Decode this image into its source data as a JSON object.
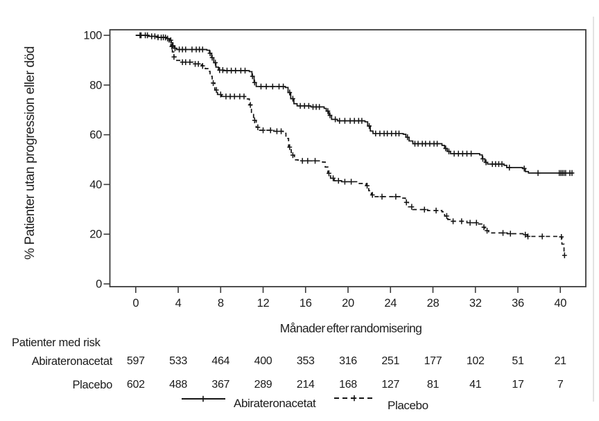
{
  "chart_data": {
    "type": "line",
    "subtype": "kaplan-meier-step",
    "title": "",
    "xlabel": "Månader efter randomisering",
    "ylabel": "% Patienter utan progression eller död",
    "xticks": [
      0,
      4,
      8,
      12,
      16,
      20,
      24,
      28,
      32,
      36,
      40
    ],
    "yticks": [
      0,
      20,
      40,
      60,
      80,
      100
    ],
    "xlim": [
      -2.4,
      42.6
    ],
    "ylim": [
      -1.2,
      102.2
    ],
    "grid": false,
    "legend_position": "bottom",
    "axis_color": "#3b3b3b",
    "curve_color": "#141414",
    "series": [
      {
        "name": "Abirateronacetat",
        "style": "solid",
        "steps": [
          [
            0,
            100
          ],
          [
            1.2,
            99.6
          ],
          [
            2.0,
            99.2
          ],
          [
            2.9,
            98.7
          ],
          [
            3.2,
            98.0
          ],
          [
            3.35,
            97.0
          ],
          [
            3.5,
            95.8
          ],
          [
            3.65,
            94.8
          ],
          [
            3.85,
            94.3
          ],
          [
            6.7,
            94.0
          ],
          [
            6.95,
            92.8
          ],
          [
            7.15,
            91.0
          ],
          [
            7.35,
            89.0
          ],
          [
            7.55,
            87.2
          ],
          [
            7.8,
            86.0
          ],
          [
            8.3,
            85.8
          ],
          [
            10.7,
            85.4
          ],
          [
            10.95,
            83.5
          ],
          [
            11.15,
            81.0
          ],
          [
            11.35,
            79.4
          ],
          [
            14.1,
            79.0
          ],
          [
            14.35,
            77.0
          ],
          [
            14.6,
            74.5
          ],
          [
            14.9,
            72.5
          ],
          [
            15.2,
            71.6
          ],
          [
            16.5,
            71.2
          ],
          [
            17.75,
            70.6
          ],
          [
            17.95,
            69.5
          ],
          [
            18.2,
            67.8
          ],
          [
            18.45,
            66.2
          ],
          [
            19.0,
            65.6
          ],
          [
            21.6,
            65.2
          ],
          [
            21.85,
            63.5
          ],
          [
            22.1,
            61.5
          ],
          [
            22.35,
            60.5
          ],
          [
            25.2,
            60.2
          ],
          [
            25.45,
            59.0
          ],
          [
            25.75,
            57.5
          ],
          [
            26.1,
            56.4
          ],
          [
            28.85,
            55.7
          ],
          [
            29.1,
            54.5
          ],
          [
            29.35,
            53.3
          ],
          [
            29.65,
            52.4
          ],
          [
            32.4,
            51.9
          ],
          [
            32.65,
            50.3
          ],
          [
            32.9,
            48.9
          ],
          [
            33.15,
            48.2
          ],
          [
            34.7,
            47.7
          ],
          [
            34.95,
            46.8
          ],
          [
            36.45,
            46.4
          ],
          [
            36.7,
            45.2
          ],
          [
            37.0,
            44.6
          ],
          [
            41.2,
            44.4
          ]
        ],
        "censor_times": [
          0.4,
          0.9,
          1.5,
          2.1,
          2.6,
          3.0,
          3.3,
          3.5,
          3.7,
          4.1,
          4.4,
          4.7,
          5.3,
          5.7,
          6.0,
          6.3,
          7.0,
          7.2,
          7.5,
          7.9,
          8.2,
          8.6,
          9.0,
          9.4,
          9.9,
          10.3,
          11.0,
          11.2,
          11.8,
          12.3,
          12.9,
          13.5,
          13.9,
          14.5,
          14.8,
          15.5,
          15.9,
          16.3,
          16.7,
          17.0,
          17.3,
          18.1,
          18.3,
          18.8,
          19.2,
          19.7,
          20.2,
          20.6,
          21.0,
          21.3,
          22.0,
          22.6,
          23.0,
          23.4,
          23.7,
          24.1,
          24.5,
          24.8,
          25.6,
          26.3,
          26.6,
          27.0,
          27.3,
          27.7,
          28.1,
          28.4,
          29.2,
          29.5,
          30.0,
          30.4,
          30.8,
          31.2,
          31.6,
          32.7,
          33.0,
          33.6,
          33.9,
          34.2,
          34.5,
          35.2,
          36.6,
          37.9,
          39.9,
          40.05,
          40.2,
          40.35,
          40.5,
          40.9,
          41.1
        ]
      },
      {
        "name": "Placebo",
        "style": "dashed",
        "steps": [
          [
            0,
            100
          ],
          [
            1.2,
            99.6
          ],
          [
            2.1,
            99.1
          ],
          [
            2.9,
            98.5
          ],
          [
            3.15,
            97.3
          ],
          [
            3.3,
            95.5
          ],
          [
            3.45,
            93.3
          ],
          [
            3.6,
            91.3
          ],
          [
            3.8,
            89.9
          ],
          [
            4.2,
            89.2
          ],
          [
            5.4,
            88.5
          ],
          [
            6.2,
            87.7
          ],
          [
            6.55,
            86.6
          ],
          [
            6.8,
            85.5
          ],
          [
            7.0,
            83.5
          ],
          [
            7.2,
            80.8
          ],
          [
            7.45,
            78.0
          ],
          [
            7.7,
            76.2
          ],
          [
            8.1,
            75.4
          ],
          [
            10.45,
            74.4
          ],
          [
            10.7,
            72.0
          ],
          [
            10.9,
            69.0
          ],
          [
            11.1,
            65.8
          ],
          [
            11.35,
            63.0
          ],
          [
            11.6,
            61.8
          ],
          [
            13.0,
            61.4
          ],
          [
            13.9,
            60.6
          ],
          [
            14.15,
            58.5
          ],
          [
            14.4,
            55.0
          ],
          [
            14.65,
            51.8
          ],
          [
            14.95,
            49.9
          ],
          [
            15.3,
            49.5
          ],
          [
            17.6,
            49.0
          ],
          [
            17.85,
            47.0
          ],
          [
            18.1,
            44.5
          ],
          [
            18.35,
            42.5
          ],
          [
            18.7,
            41.5
          ],
          [
            19.4,
            41.1
          ],
          [
            20.9,
            40.4
          ],
          [
            21.7,
            39.5
          ],
          [
            21.95,
            37.5
          ],
          [
            22.2,
            35.8
          ],
          [
            22.5,
            35.1
          ],
          [
            25.1,
            34.5
          ],
          [
            25.4,
            32.8
          ],
          [
            25.7,
            31.0
          ],
          [
            26.1,
            29.9
          ],
          [
            27.5,
            29.5
          ],
          [
            28.85,
            29.0
          ],
          [
            29.1,
            27.3
          ],
          [
            29.4,
            25.9
          ],
          [
            29.8,
            25.2
          ],
          [
            31.2,
            24.6
          ],
          [
            32.3,
            24.1
          ],
          [
            32.6,
            22.8
          ],
          [
            32.9,
            21.4
          ],
          [
            33.25,
            20.5
          ],
          [
            35.0,
            20.2
          ],
          [
            36.6,
            19.8
          ],
          [
            36.9,
            19.1
          ],
          [
            39.9,
            18.9
          ],
          [
            40.15,
            16.0
          ],
          [
            40.35,
            11.5
          ]
        ],
        "censor_times": [
          0.5,
          1.1,
          1.8,
          2.4,
          2.8,
          3.4,
          3.6,
          4.4,
          4.7,
          5.1,
          5.6,
          5.9,
          6.3,
          7.3,
          7.6,
          8.0,
          8.5,
          8.9,
          9.3,
          9.8,
          10.2,
          10.8,
          11.2,
          11.5,
          12.0,
          12.7,
          13.3,
          13.7,
          14.5,
          14.8,
          15.7,
          16.2,
          16.9,
          18.2,
          18.6,
          19.1,
          19.7,
          20.3,
          21.8,
          22.3,
          23.2,
          24.5,
          25.5,
          26.0,
          27.2,
          28.3,
          29.3,
          29.9,
          30.7,
          31.5,
          32.1,
          32.8,
          33.1,
          34.6,
          35.3,
          36.7,
          36.95,
          38.3,
          40.1,
          40.4
        ]
      }
    ],
    "legend": [
      {
        "label": "Abirateronacetat",
        "style": "solid"
      },
      {
        "label": "Placebo",
        "style": "dashed"
      }
    ],
    "risk_table": {
      "title": "Patienter med risk",
      "times": [
        0,
        4,
        8,
        12,
        16,
        20,
        24,
        28,
        32,
        36,
        40
      ],
      "rows": [
        {
          "label": "Abirateronacetat",
          "counts": [
            "597",
            "533",
            "464",
            "400",
            "353",
            "316",
            "251",
            "177",
            "102",
            "51",
            "21"
          ]
        },
        {
          "label": "Placebo",
          "counts": [
            "602",
            "488",
            "367",
            "289",
            "214",
            "168",
            "127",
            "81",
            "41",
            "17",
            "7"
          ]
        }
      ]
    }
  }
}
